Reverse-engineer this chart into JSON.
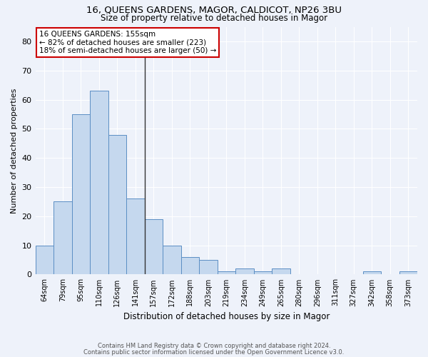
{
  "title1": "16, QUEENS GARDENS, MAGOR, CALDICOT, NP26 3BU",
  "title2": "Size of property relative to detached houses in Magor",
  "xlabel": "Distribution of detached houses by size in Magor",
  "ylabel": "Number of detached properties",
  "categories": [
    "64sqm",
    "79sqm",
    "95sqm",
    "110sqm",
    "126sqm",
    "141sqm",
    "157sqm",
    "172sqm",
    "188sqm",
    "203sqm",
    "219sqm",
    "234sqm",
    "249sqm",
    "265sqm",
    "280sqm",
    "296sqm",
    "311sqm",
    "327sqm",
    "342sqm",
    "358sqm",
    "373sqm"
  ],
  "values": [
    10,
    25,
    55,
    63,
    48,
    26,
    19,
    10,
    6,
    5,
    1,
    2,
    1,
    2,
    0,
    0,
    0,
    0,
    1,
    0,
    1
  ],
  "bar_color": "#c5d8ee",
  "bar_edge_color": "#5b8ec4",
  "background_color": "#eef2fa",
  "grid_color": "#ffffff",
  "annotation_text": "16 QUEENS GARDENS: 155sqm\n← 82% of detached houses are smaller (223)\n18% of semi-detached houses are larger (50) →",
  "annotation_box_color": "#ffffff",
  "annotation_box_edge_color": "#cc0000",
  "vline_x_index": 5.5,
  "vline_color": "#333333",
  "ylim": [
    0,
    85
  ],
  "yticks": [
    0,
    10,
    20,
    30,
    40,
    50,
    60,
    70,
    80
  ],
  "footer1": "Contains HM Land Registry data © Crown copyright and database right 2024.",
  "footer2": "Contains public sector information licensed under the Open Government Licence v3.0."
}
